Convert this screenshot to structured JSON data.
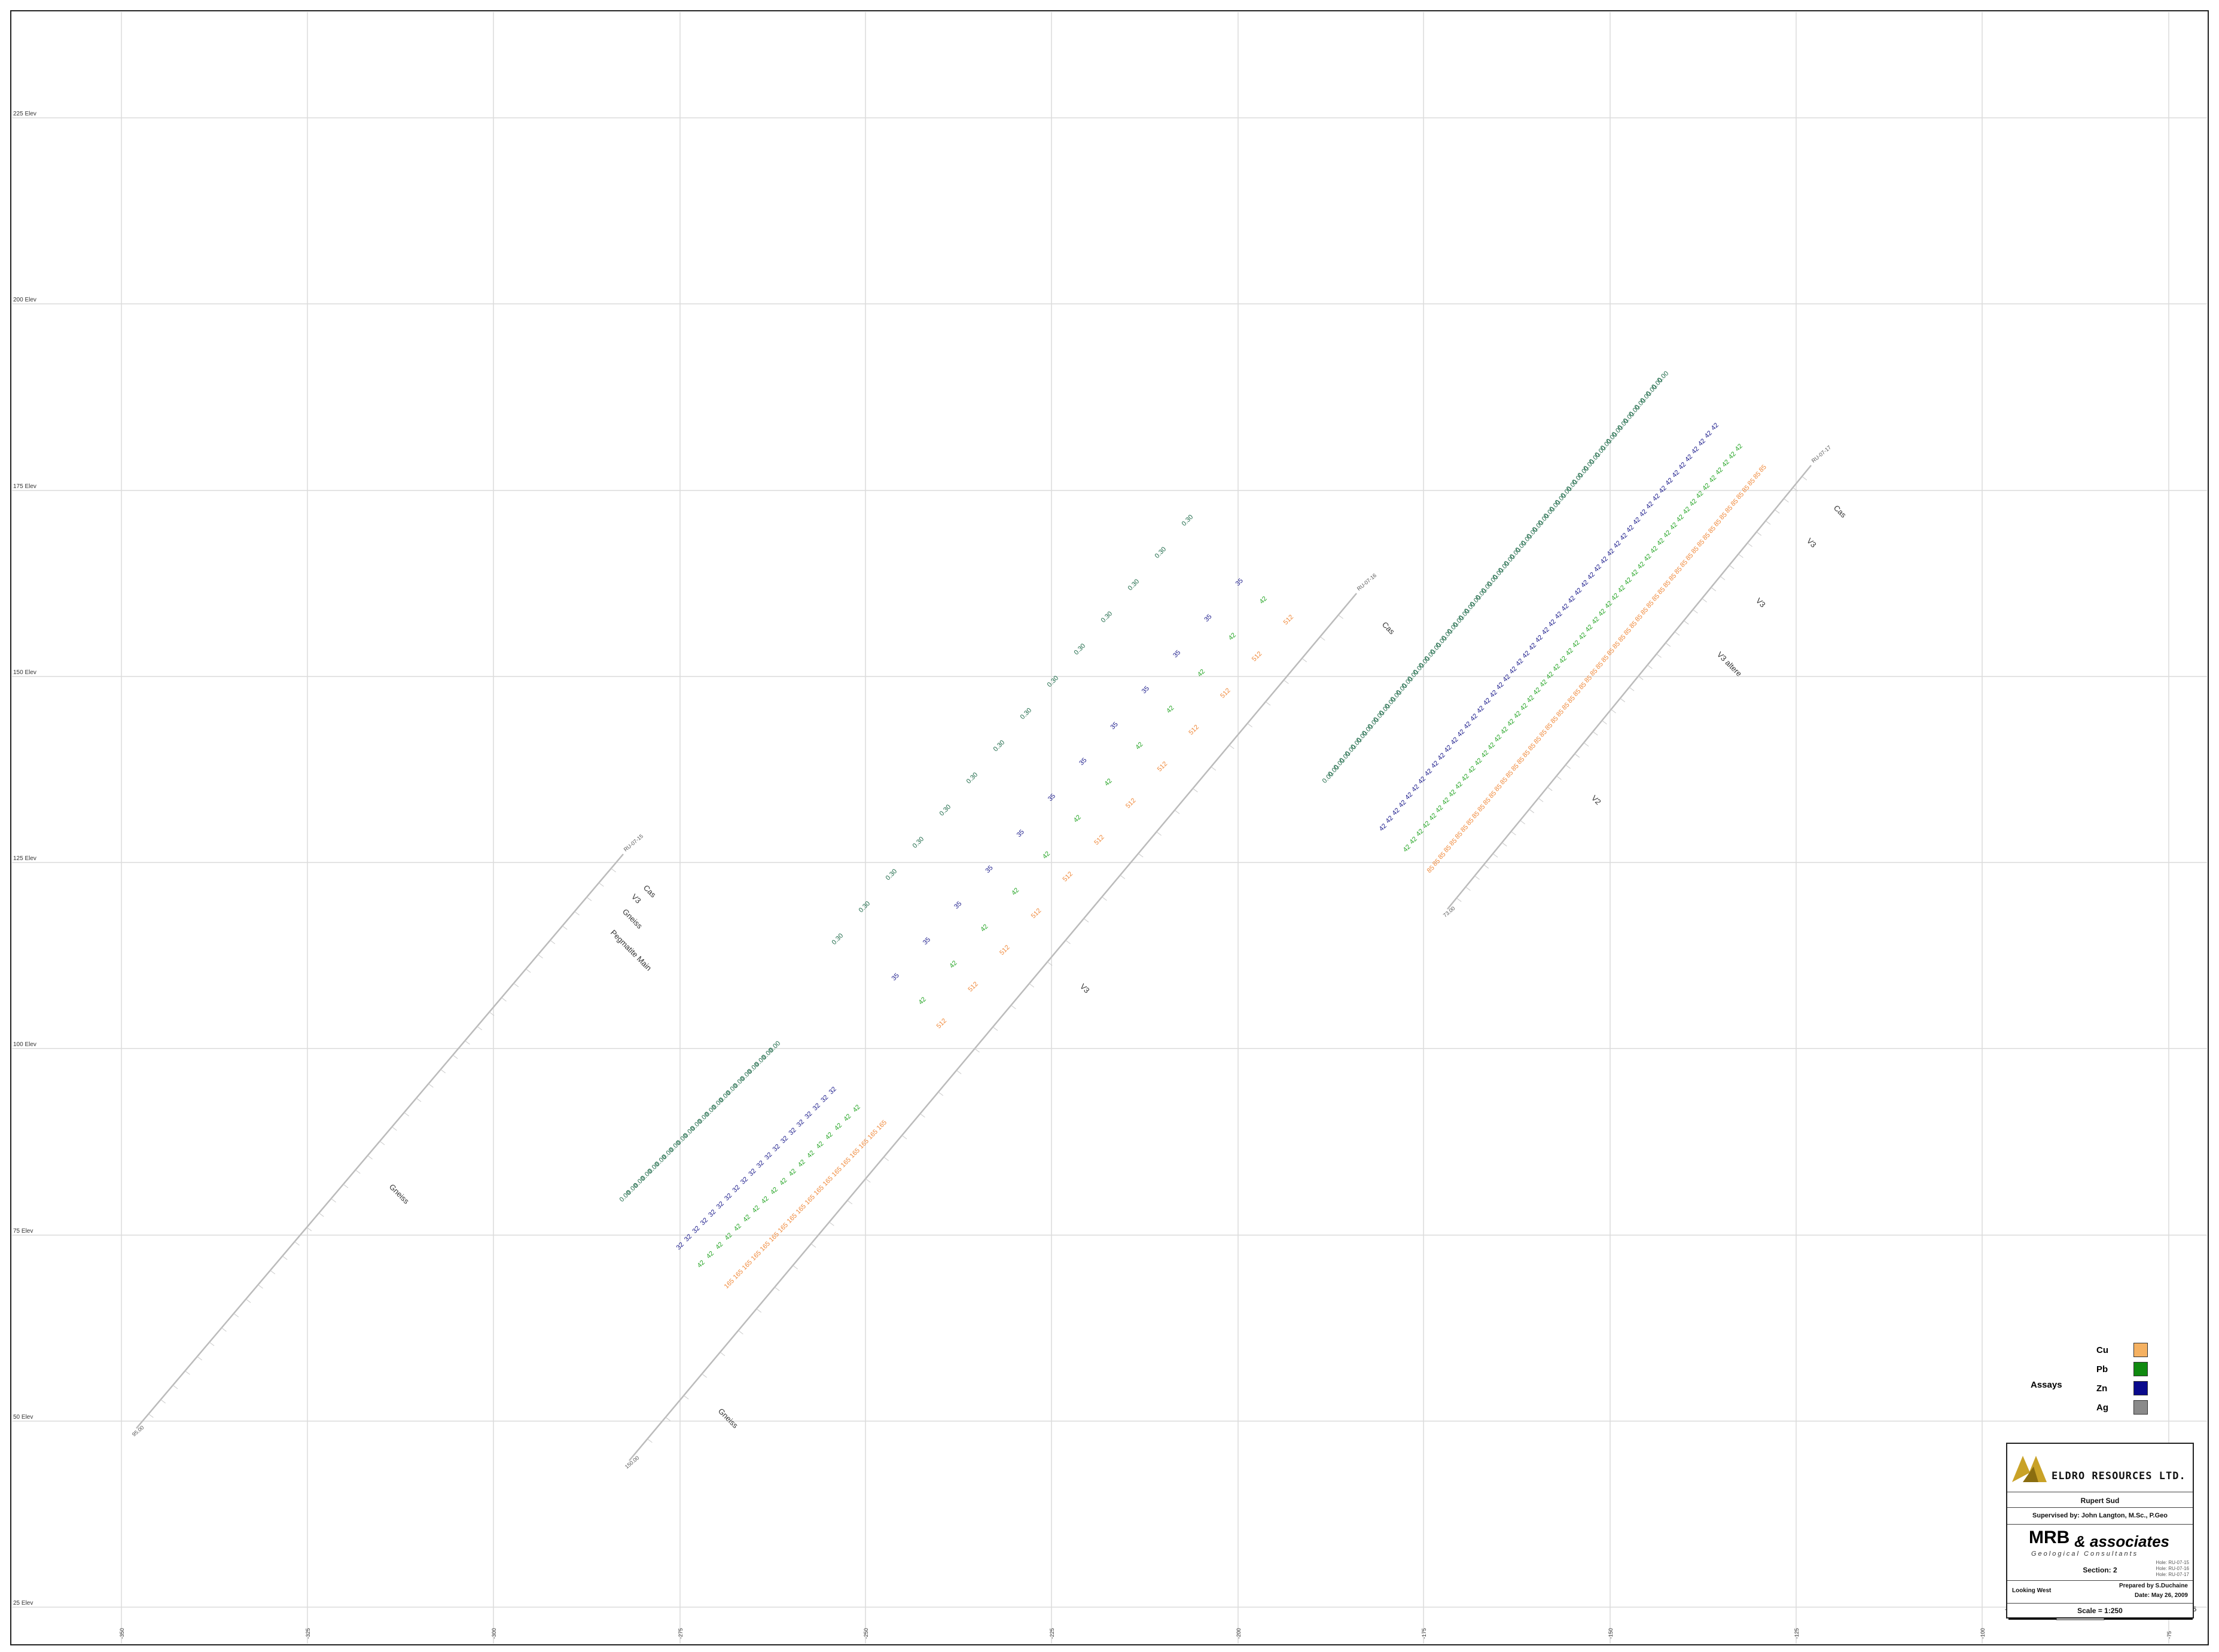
{
  "section": {
    "elevation_labels": [
      "225 Elev",
      "200 Elev",
      "175 Elev",
      "150 Elev",
      "125 Elev",
      "100 Elev",
      "75 Elev",
      "50 Elev",
      "25 Elev"
    ],
    "easting_labels": [
      "-350",
      "-325",
      "-300",
      "-275",
      "-250",
      "-225",
      "-200",
      "-175",
      "-150",
      "-125",
      "-100",
      "-75"
    ],
    "scale_ticks": [
      "-25",
      "0",
      "25"
    ]
  },
  "holes": [
    {
      "collar": "RU-07-15",
      "depth": "95.00",
      "lithology": [
        "Cas",
        "V3",
        "Gneiss",
        "Pegmatite Main",
        "Gneiss"
      ]
    },
    {
      "collar": "RU-07-16",
      "depth": "150.00",
      "lithology": [
        "Cas",
        "V3",
        "Gneiss"
      ]
    },
    {
      "collar": "RU-07-17",
      "depth": "73.00",
      "lithology": [
        "Cas",
        "V3",
        "V3",
        "V3 altere",
        "V2"
      ]
    }
  ],
  "legend": {
    "title": "Assays",
    "items": [
      {
        "label": "Cu",
        "color": "#f5b161"
      },
      {
        "label": "Pb",
        "color": "#108a10"
      },
      {
        "label": "Zn",
        "color": "#0a0a8c"
      },
      {
        "label": "Ag",
        "color": "#8a8a8a"
      }
    ]
  },
  "colors": {
    "green": "#1f6b4a",
    "blue": "#1c1c8c",
    "lgreen": "#2aa72a",
    "orange": "#f08a3c",
    "grid": "#dcdcdc",
    "hole": "#bbbbbb"
  },
  "title_block": {
    "company": "ELDRO RESOURCES LTD.",
    "project": "Rupert Sud",
    "supervised": "Supervised by: John Langton, M.Sc., P.Geo",
    "firm_mrb": "MRB",
    "firm_assoc": "& associates",
    "firm_sub": "Geological Consultants",
    "holes": [
      "Hole: RU-07-15",
      "Hole: RU-07-16",
      "Hole: RU-07-17"
    ],
    "section": "Section: 2",
    "looking": "Looking West",
    "prepared": "Prepared by S.Duchaine",
    "date": "Date: May 26, 2009",
    "scale": "Scale = 1:250"
  }
}
